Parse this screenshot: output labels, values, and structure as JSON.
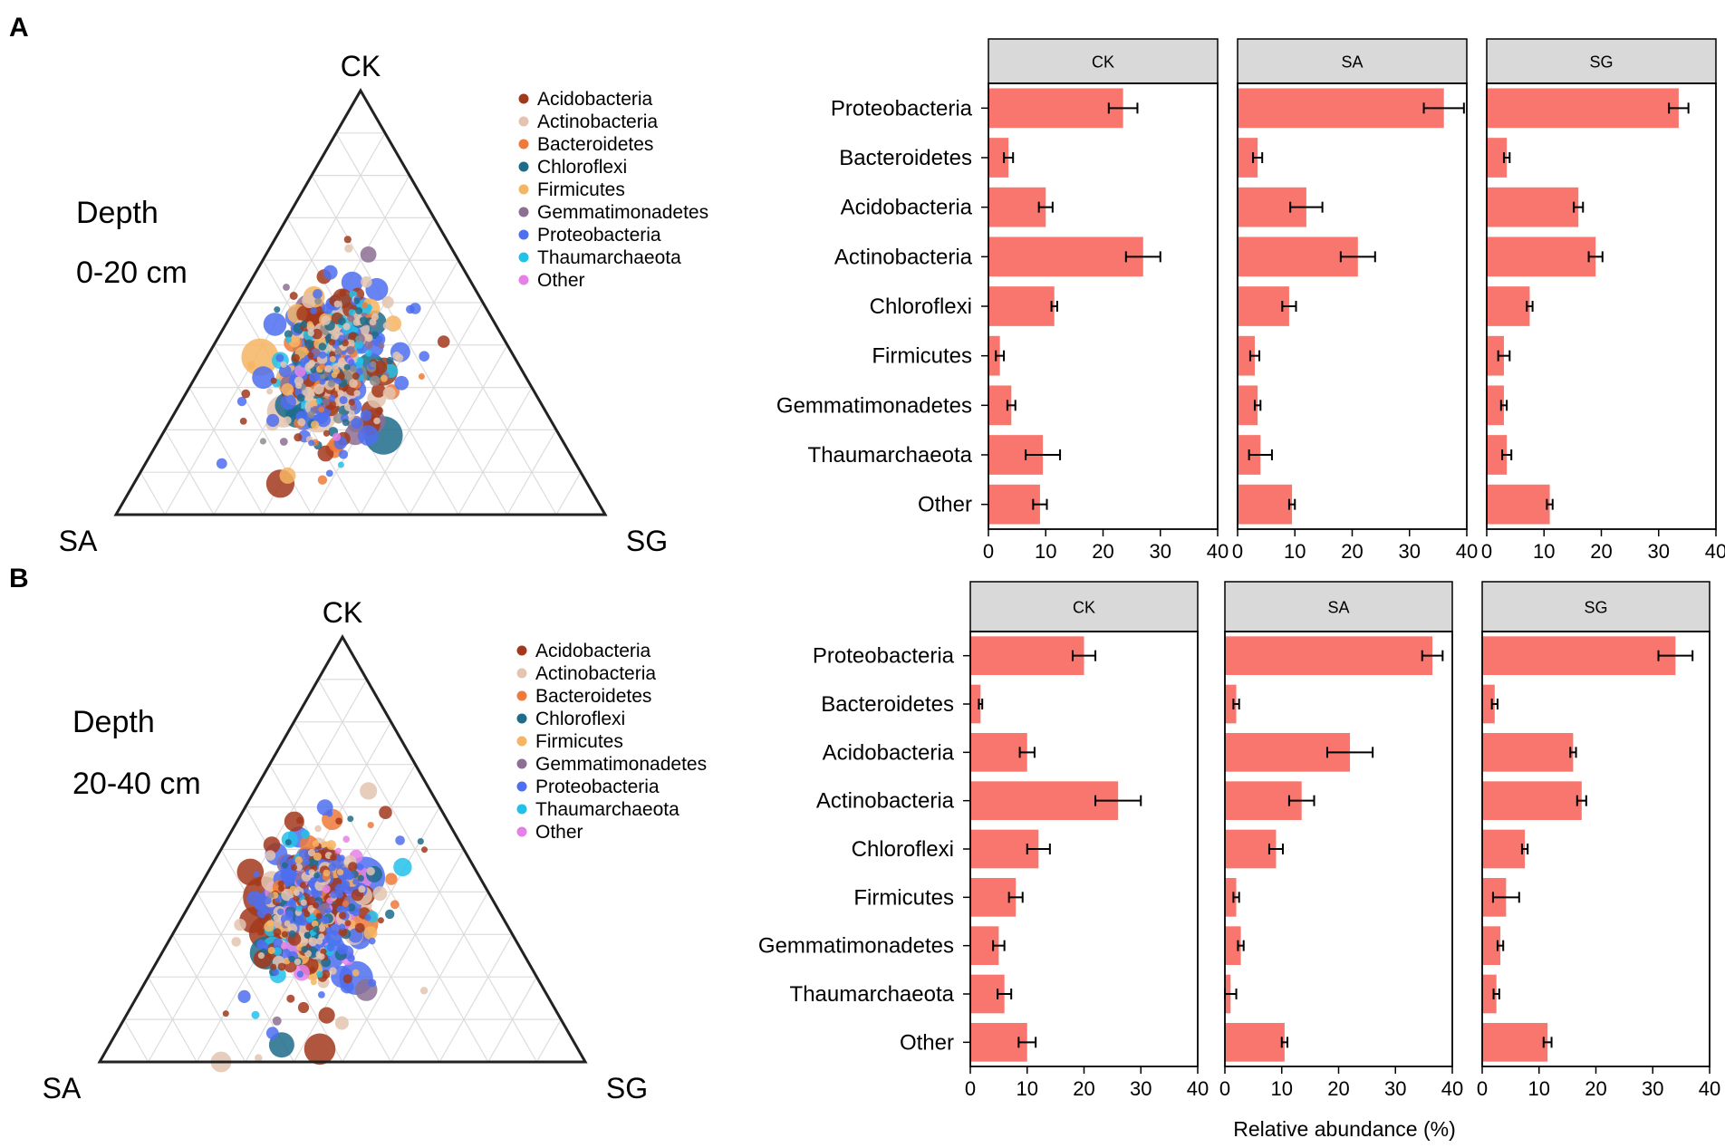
{
  "chart_data": [
    {
      "type": "ternary",
      "panel": "A",
      "vertices": [
        "CK",
        "SA",
        "SG"
      ],
      "depth_label": "Depth",
      "depth_value": "0-20 cm",
      "legend": [
        "Acidobacteria",
        "Actinobacteria",
        "Bacteroidetes",
        "Chloroflexi",
        "Firmicutes",
        "Gemmatimonadetes",
        "Proteobacteria",
        "Thaumarchaeota",
        "Other"
      ]
    },
    {
      "type": "ternary",
      "panel": "B",
      "vertices": [
        "CK",
        "SA",
        "SG"
      ],
      "depth_label": "Depth",
      "depth_value": "20-40 cm",
      "legend": [
        "Acidobacteria",
        "Actinobacteria",
        "Bacteroidetes",
        "Chloroflexi",
        "Firmicutes",
        "Gemmatimonadetes",
        "Proteobacteria",
        "Thaumarchaeota",
        "Other"
      ]
    },
    {
      "type": "bar",
      "orientation": "horizontal",
      "panel": "A",
      "categories": [
        "Proteobacteria",
        "Bacteroidetes",
        "Acidobacteria",
        "Actinobacteria",
        "Chloroflexi",
        "Firmicutes",
        "Gemmatimonadetes",
        "Thaumarchaeota",
        "Other"
      ],
      "xlim": [
        0,
        40
      ],
      "xticks": [
        "0",
        "10",
        "20",
        "30",
        "40"
      ],
      "facets": [
        {
          "name": "CK",
          "values": [
            23.5,
            3.5,
            10,
            27,
            11.5,
            2,
            4,
            9.5,
            9
          ],
          "errors": [
            2.5,
            0.8,
            1.2,
            3,
            0.5,
            0.7,
            0.7,
            3,
            1.2
          ]
        },
        {
          "name": "SA",
          "values": [
            36,
            3.5,
            12,
            21,
            9,
            3,
            3.5,
            4,
            9.5
          ],
          "errors": [
            3.5,
            0.8,
            2.8,
            3,
            1.2,
            0.8,
            0.5,
            2,
            0.5
          ]
        },
        {
          "name": "SG",
          "values": [
            33.5,
            3.5,
            16,
            19,
            7.5,
            3,
            3,
            3.5,
            11
          ],
          "errors": [
            1.7,
            0.5,
            0.8,
            1.2,
            0.5,
            1,
            0.5,
            0.8,
            0.5
          ]
        }
      ]
    },
    {
      "type": "bar",
      "orientation": "horizontal",
      "panel": "B",
      "categories": [
        "Proteobacteria",
        "Bacteroidetes",
        "Acidobacteria",
        "Actinobacteria",
        "Chloroflexi",
        "Firmicutes",
        "Gemmatimonadetes",
        "Thaumarchaeota",
        "Other"
      ],
      "xlim": [
        0,
        40
      ],
      "xticks": [
        "0",
        "10",
        "20",
        "30",
        "40"
      ],
      "xlabel": "Relative abundance (%)",
      "facets": [
        {
          "name": "CK",
          "values": [
            20,
            1.8,
            10,
            26,
            12,
            8,
            5,
            6,
            10
          ],
          "errors": [
            2,
            0.3,
            1.3,
            4,
            2,
            1.2,
            1,
            1.2,
            1.5
          ]
        },
        {
          "name": "SA",
          "values": [
            36.5,
            2,
            22,
            13.5,
            9,
            2,
            2.8,
            1,
            10.5
          ],
          "errors": [
            1.8,
            0.5,
            4,
            2.2,
            1.2,
            0.5,
            0.5,
            1,
            0.5
          ]
        },
        {
          "name": "SG",
          "values": [
            34,
            2.2,
            16,
            17.5,
            7.5,
            4.2,
            3.2,
            2.5,
            11.5
          ],
          "errors": [
            3,
            0.5,
            0.5,
            0.8,
            0.5,
            2.3,
            0.5,
            0.5,
            0.7
          ]
        }
      ]
    }
  ],
  "colors": {
    "Acidobacteria": "#a3381c",
    "Actinobacteria": "#e3c4b0",
    "Bacteroidetes": "#ef7a3a",
    "Chloroflexi": "#1f6b8a",
    "Firmicutes": "#f6b563",
    "Gemmatimonadetes": "#8c6f93",
    "Proteobacteria": "#4d6ff0",
    "Thaumarchaeota": "#22c1ea",
    "Other": "#e580e8",
    "Unassigned": "#8c8c8c",
    "bar": "#f8766d",
    "facet_bg": "#d9d9d9",
    "grid": "#dcdcdc"
  }
}
